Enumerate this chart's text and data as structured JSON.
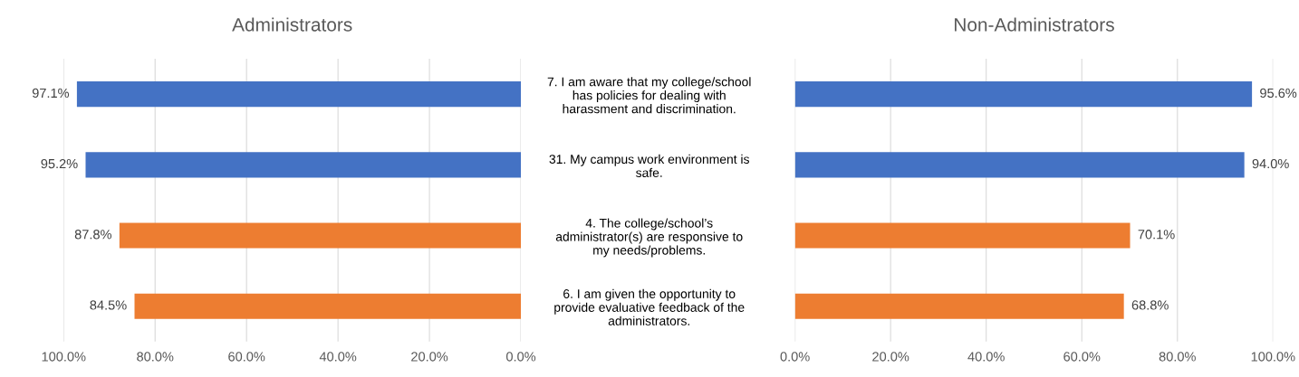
{
  "chart_data": [
    {
      "type": "bar",
      "orientation": "horizontal",
      "title": "Administrators",
      "categories": [
        "7. I am aware that my college/school\nhas policies for dealing with\nharassment and discrimination.",
        "31. My campus work environment is\nsafe.",
        "4. The college/school’s\nadministrator(s) are responsive to\nmy needs/problems.",
        "6. I am given the opportunity to\nprovide evaluative feedback of the\nadministrators."
      ],
      "values": [
        97.1,
        95.2,
        87.8,
        84.5
      ],
      "value_labels": [
        "97.1%",
        "95.2%",
        "87.8%",
        "84.5%"
      ],
      "colors": [
        "#4472c4",
        "#4472c4",
        "#ed7d31",
        "#ed7d31"
      ],
      "xlim": [
        100,
        0
      ],
      "xticks": [
        {
          "value": 100,
          "label": "100.0%"
        },
        {
          "value": 80,
          "label": "80.0%"
        },
        {
          "value": 60,
          "label": "60.0%"
        },
        {
          "value": 40,
          "label": "40.0%"
        },
        {
          "value": 20,
          "label": "20.0%"
        },
        {
          "value": 0,
          "label": "0.0%"
        }
      ],
      "grid": "x"
    },
    {
      "type": "bar",
      "orientation": "horizontal",
      "title": "Non-Administrators",
      "categories": [
        null,
        null,
        null,
        null
      ],
      "values": [
        95.6,
        94.0,
        70.1,
        68.8
      ],
      "value_labels": [
        "95.6%",
        "94.0%",
        "70.1%",
        "68.8%"
      ],
      "colors": [
        "#4472c4",
        "#4472c4",
        "#ed7d31",
        "#ed7d31"
      ],
      "xlim": [
        0,
        100
      ],
      "xticks": [
        {
          "value": 0,
          "label": "0.0%"
        },
        {
          "value": 20,
          "label": "20.0%"
        },
        {
          "value": 40,
          "label": "40.0%"
        },
        {
          "value": 60,
          "label": "60.0%"
        },
        {
          "value": 80,
          "label": "80.0%"
        },
        {
          "value": 100,
          "label": "100.0%"
        }
      ],
      "grid": "x"
    }
  ]
}
